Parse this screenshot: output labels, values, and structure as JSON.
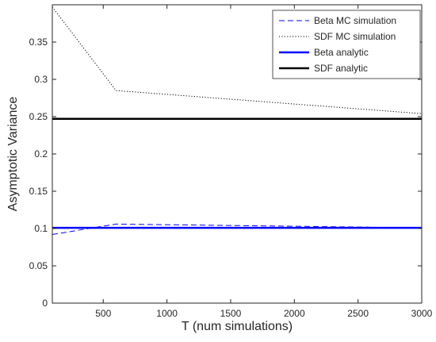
{
  "chart_data": {
    "type": "line",
    "title": "",
    "xlabel": "T (num simulations)",
    "ylabel": "Asymptotic Variance",
    "xlim": [
      100,
      3000
    ],
    "ylim": [
      0,
      0.4
    ],
    "xticks": [
      500,
      1000,
      1500,
      2000,
      2500,
      3000
    ],
    "xtick_labels": [
      "500",
      "1000",
      "1500",
      "2000",
      "2500",
      "3000"
    ],
    "yticks": [
      0,
      0.05,
      0.1,
      0.15,
      0.2,
      0.25,
      0.3,
      0.35
    ],
    "ytick_labels": [
      "0",
      "0.05",
      "0.1",
      "0.15",
      "0.2",
      "0.25",
      "0.3",
      "0.35"
    ],
    "grid": false,
    "legend_position": "top-right",
    "series": [
      {
        "name": "Beta MC simulation",
        "style": "dashed",
        "color": "#0000ff",
        "width": 1,
        "x": [
          100,
          600,
          3000
        ],
        "y": [
          0.092,
          0.106,
          0.101
        ]
      },
      {
        "name": "SDF MC simulation",
        "style": "dotted",
        "color": "#000000",
        "width": 1,
        "x": [
          100,
          600,
          3000
        ],
        "y": [
          0.397,
          0.285,
          0.254
        ]
      },
      {
        "name": "Beta analytic",
        "style": "solid",
        "color": "#0000ff",
        "width": 2.5,
        "x": [
          100,
          3000
        ],
        "y": [
          0.101,
          0.101
        ]
      },
      {
        "name": "SDF analytic",
        "style": "solid",
        "color": "#000000",
        "width": 2.5,
        "x": [
          100,
          3000
        ],
        "y": [
          0.247,
          0.247
        ]
      }
    ]
  }
}
